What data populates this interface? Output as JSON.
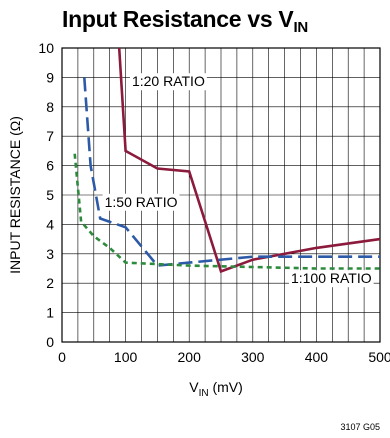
{
  "chart_data": {
    "type": "line",
    "title_main": "Input Resistance vs V",
    "title_sub": "IN",
    "xlabel_main": "V",
    "xlabel_sub": "IN",
    "xlabel_unit": " (mV)",
    "ylabel": "INPUT RESISTANCE (Ω)",
    "xlim": [
      0,
      500
    ],
    "ylim": [
      0,
      10
    ],
    "xticks": [
      0,
      100,
      200,
      300,
      400,
      500
    ],
    "yticks": [
      0,
      1,
      2,
      3,
      4,
      5,
      6,
      7,
      8,
      9,
      10
    ],
    "grid": true,
    "series": [
      {
        "name": "1:20 RATIO",
        "color": "#8b1a3c",
        "style": "solid",
        "points": [
          [
            90,
            10.0
          ],
          [
            100,
            6.5
          ],
          [
            150,
            5.9
          ],
          [
            200,
            5.8
          ],
          [
            250,
            2.4
          ],
          [
            300,
            2.8
          ],
          [
            400,
            3.2
          ],
          [
            500,
            3.5
          ]
        ]
      },
      {
        "name": "1:50 RATIO",
        "color": "#2d5aa6",
        "style": "longdash",
        "points": [
          [
            35,
            9.0
          ],
          [
            45,
            6.0
          ],
          [
            60,
            4.2
          ],
          [
            100,
            3.9
          ],
          [
            150,
            2.6
          ],
          [
            200,
            2.7
          ],
          [
            300,
            2.9
          ],
          [
            400,
            2.9
          ],
          [
            500,
            2.9
          ]
        ]
      },
      {
        "name": "1:100 RATIO",
        "color": "#2e8b3e",
        "style": "shortdash",
        "points": [
          [
            20,
            6.4
          ],
          [
            30,
            4.1
          ],
          [
            50,
            3.6
          ],
          [
            75,
            3.2
          ],
          [
            100,
            2.7
          ],
          [
            150,
            2.65
          ],
          [
            200,
            2.6
          ],
          [
            300,
            2.55
          ],
          [
            400,
            2.5
          ],
          [
            500,
            2.5
          ]
        ]
      }
    ],
    "annotations": [
      {
        "text": "1:20 RATIO",
        "x": 110,
        "y": 8.7
      },
      {
        "text": "1:50 RATIO",
        "x": 67,
        "y": 4.6
      },
      {
        "text": "1:100 RATIO",
        "x": 360,
        "y": 2.0
      }
    ],
    "footnote": "3107 G05"
  }
}
